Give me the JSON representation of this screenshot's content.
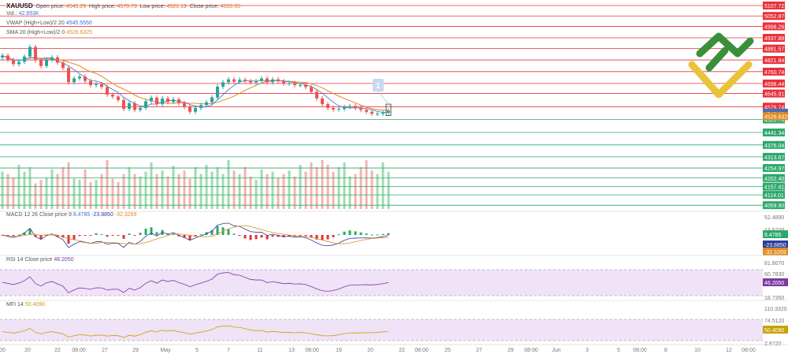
{
  "header": {
    "symbol": "XAUUSD",
    "open_label": "Open price:",
    "open_value": "4545.29",
    "high_label": "High price:",
    "high_value": "4570.73",
    "low_label": "Low price:",
    "low_value": "4521.19",
    "close_label": "Close price:",
    "close_value": "4555.55",
    "vol_label": "Vol.:",
    "vol_value": "42.953K",
    "vwap_label": "VWAP (High+Low)/2 20",
    "vwap_value": "4545.5550",
    "sma_label": "SMA 20 (High+Low)/2 0",
    "sma_value": "4526.6325"
  },
  "indicators": {
    "macd_label": "MACD 12 26 Close price 9",
    "macd_v1": "8.4785",
    "macd_v2": "-23.8850",
    "macd_v3": "-32.3269",
    "rsi_label": "RSI 14 Close price",
    "rsi_value": "46.2050",
    "mfi_label": "MFI 14",
    "mfi_value": "50.4090"
  },
  "annotation": "1",
  "colors": {
    "up": "#26a69a",
    "down": "#ef5350",
    "resistance": "#e8303a",
    "support": "#2ea86a",
    "vwap": "#3b6fd8",
    "sma": "#e08a20",
    "rsi": "#7a3aa0",
    "mfi": "#c8a000",
    "macd": "#2a3d9a",
    "signal": "#e08a20",
    "band": "#f0e2f7"
  },
  "chart_data": {
    "type": "candlestick",
    "x_ticks": [
      "00",
      "20",
      "22",
      "08:00",
      "27",
      "29",
      "May",
      "5",
      "7",
      "11",
      "13",
      "08:00",
      "19",
      "20",
      "22",
      "08:00",
      "25",
      "27",
      "29",
      "08:00",
      "Jun",
      "3",
      "5",
      "08:00",
      "8",
      "10",
      "12",
      "08:00"
    ],
    "price_levels": {
      "resistance": [
        "5107.72",
        "5052.87",
        "4998.26",
        "4937.88",
        "4881.57",
        "4821.84",
        "4760.74",
        "4698.44",
        "4645.91",
        "4576.74"
      ],
      "support": [
        "4509.74",
        "4441.34",
        "4376.04",
        "4313.67",
        "4254.97",
        "4202.40",
        "4157.41",
        "4114.01",
        "4059.90"
      ]
    },
    "current_levels": {
      "vwap": "4545.5550",
      "sma": "4526.6325",
      "other": "4540.33"
    },
    "close": [
      4845,
      4822,
      4800,
      4812,
      4840,
      4890,
      4820,
      4790,
      4822,
      4836,
      4808,
      4780,
      4705,
      4725,
      4735,
      4712,
      4690,
      4695,
      4680,
      4640,
      4630,
      4612,
      4565,
      4595,
      4560,
      4570,
      4605,
      4624,
      4590,
      4620,
      4602,
      4615,
      4595,
      4575,
      4550,
      4570,
      4585,
      4600,
      4625,
      4682,
      4705,
      4720,
      4708,
      4718,
      4712,
      4704,
      4712,
      4725,
      4705,
      4720,
      4710,
      4698,
      4700,
      4690,
      4690,
      4680,
      4655,
      4620,
      4590,
      4570,
      4562,
      4565,
      4575,
      4580,
      4570,
      4560,
      4550,
      4540,
      4540,
      4545,
      4555
    ],
    "volume": [
      32,
      30,
      27,
      38,
      32,
      36,
      22,
      25,
      27,
      34,
      30,
      36,
      40,
      26,
      25,
      34,
      23,
      25,
      30,
      42,
      26,
      23,
      30,
      36,
      30,
      28,
      32,
      40,
      30,
      33,
      28,
      37,
      30,
      33,
      26,
      36,
      30,
      38,
      32,
      36,
      30,
      42,
      33,
      30,
      36,
      28,
      25,
      34,
      30,
      32,
      27,
      30,
      33,
      28,
      38,
      32,
      40,
      36,
      42,
      38,
      32,
      36,
      40,
      28,
      30,
      36,
      42,
      33,
      30,
      40,
      32
    ],
    "macd": {
      "ylabels": [
        "52.4890",
        "13.5220"
      ],
      "values": [
        "8.4785",
        "-23.8850",
        "-32.3269"
      ]
    },
    "rsi": {
      "ylabels": [
        "81.8070",
        "60.7830",
        "18.7350"
      ],
      "value": "46.2050",
      "levels": [
        70,
        30
      ]
    },
    "mfi": {
      "ylabels": [
        "110.3320",
        "74.5120",
        "2.8720"
      ],
      "value": "50.4090",
      "levels": [
        80,
        20
      ]
    }
  }
}
